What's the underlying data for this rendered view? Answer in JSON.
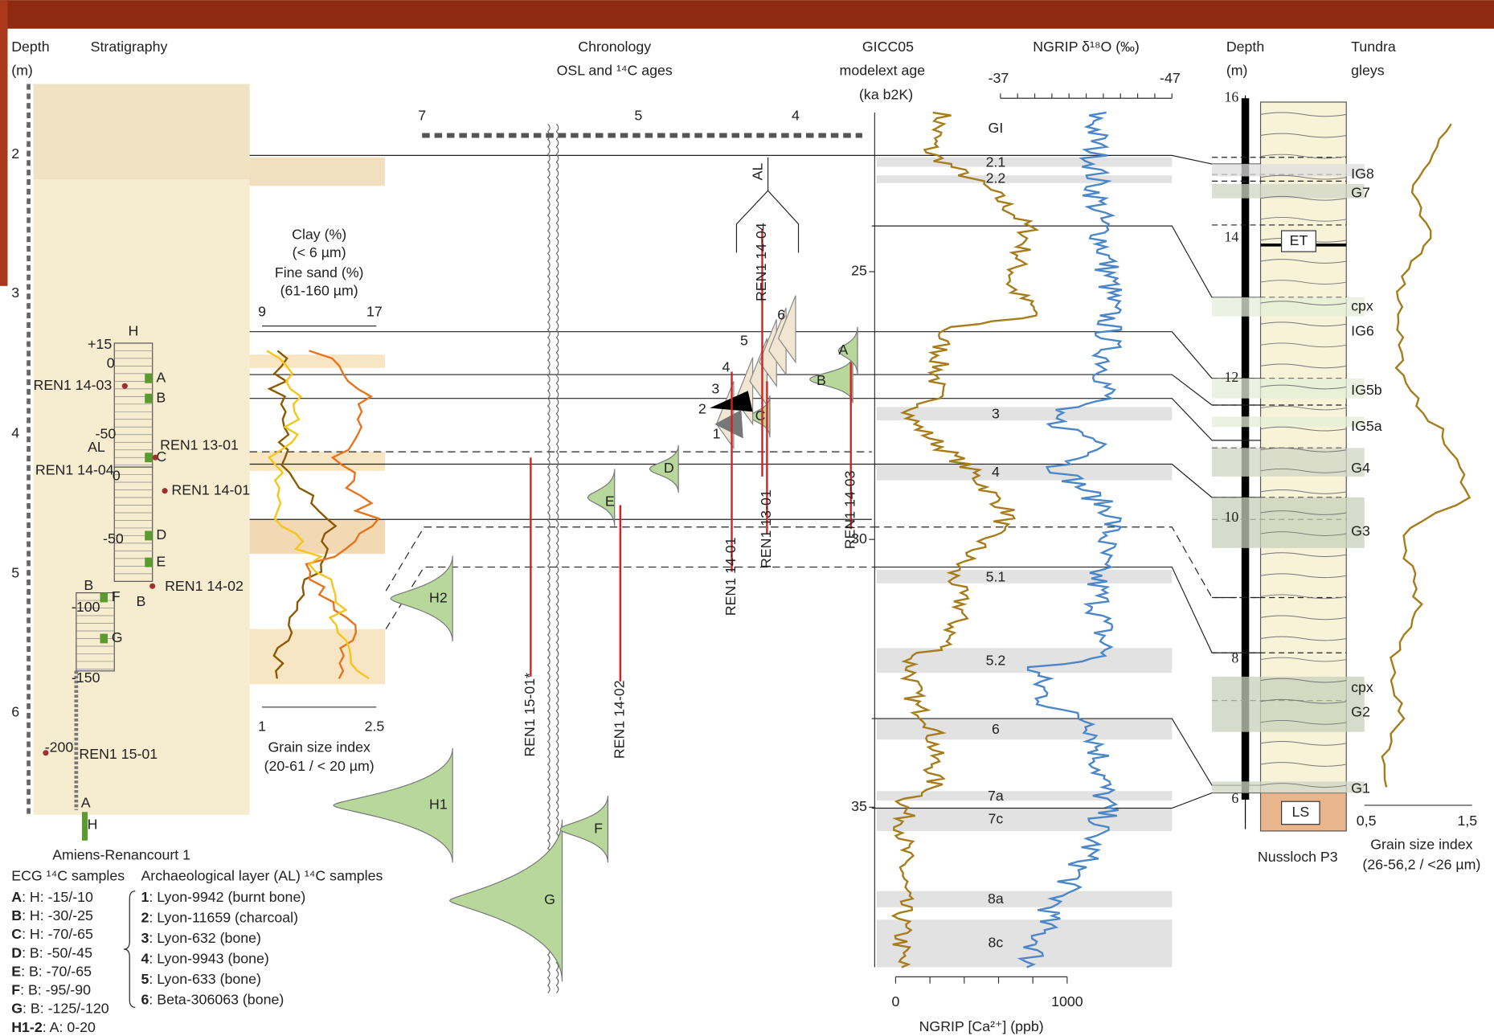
{
  "left_panel": {
    "depth_label": "Depth",
    "depth_unit": "(m)",
    "strat_label": "Stratigraphy",
    "depth_ticks": [
      "2",
      "3",
      "4",
      "5",
      "6"
    ],
    "profile_marks": [
      "+15",
      "0",
      "-50",
      "0",
      "-50",
      "-100",
      "-150",
      "-200"
    ],
    "column_labels": [
      "H",
      "B",
      "B",
      "A",
      "H"
    ],
    "samples": [
      "A",
      "B",
      "C",
      "D",
      "E",
      "F",
      "G"
    ],
    "al": "AL",
    "ren_labels": [
      "REN1 14-03",
      "REN1 13-01",
      "REN1 14-04",
      "REN1 14-01",
      "REN1 14-02",
      "REN1 15-01"
    ],
    "site": "Amiens-Renancourt 1"
  },
  "grain_panel": {
    "clay": "Clay (%)",
    "clay_sub": "(< 6 µm)",
    "sand": "Fine sand (%)",
    "sand_sub": "(61-160 µm)",
    "top_ticks": [
      "9",
      "17"
    ],
    "bottom_ticks": [
      "1",
      "2.5"
    ],
    "index": "Grain size index",
    "index_sub": "(20-61 / < 20 µm)"
  },
  "chronology": {
    "title": "Chronology",
    "subtitle": "OSL and ¹⁴C ages",
    "axis_ticks": [
      "7",
      "5",
      "4"
    ],
    "osl": [
      "H2",
      "H1",
      "G",
      "F",
      "E",
      "D",
      "C",
      "B",
      "A"
    ],
    "al": "AL",
    "c14": [
      "1",
      "2",
      "3",
      "4",
      "5",
      "6"
    ],
    "ages": [
      "REN1 15-01*",
      "REN1 14-02",
      "REN1 14-01",
      "REN1 13-01",
      "REN1 14-04",
      "REN1 14-03"
    ]
  },
  "gicc": {
    "title": "GICC05",
    "subtitle": "modelext age",
    "unit": "(ka b2K)",
    "ticks": [
      "25",
      "30",
      "35"
    ],
    "events": [
      "GI",
      "2.1",
      "2.2",
      "3",
      "4",
      "5.1",
      "5.2",
      "6",
      "7a",
      "7c",
      "8a",
      "8c"
    ],
    "ngrip_title": "NGRIP δ¹⁸O (‰)",
    "d18_ticks": [
      "-37",
      "-47"
    ],
    "ca_ticks": [
      "0",
      "1000"
    ],
    "ca_label": "NGRIP [Ca²⁺] (ppb)"
  },
  "nussloch": {
    "depth_label": "Depth",
    "depth_unit": "(m)",
    "tundra": "Tundra",
    "gleys": "gleys",
    "depth_ticks": [
      "16",
      "14",
      "12",
      "10",
      "8",
      "6"
    ],
    "horizons": [
      "IG8",
      "G7",
      "cpx",
      "IG6",
      "IG5b",
      "IG5a",
      "G4",
      "G3",
      "cpx",
      "G2",
      "G1"
    ],
    "boxes": [
      "ET",
      "LS"
    ],
    "site": "Nussloch P3",
    "x_ticks": [
      "0,5",
      "1,5"
    ],
    "index": "Grain size index",
    "index_sub": "(26-56,2 / <26 µm)"
  },
  "legend": {
    "ecg_title": "ECG ¹⁴C samples",
    "ecg": [
      {
        "key": "A",
        "text": ": H: -15/-10"
      },
      {
        "key": "B",
        "text": ": H: -30/-25"
      },
      {
        "key": "C",
        "text": ": H: -70/-65"
      },
      {
        "key": "D",
        "text": ": B: -50/-45"
      },
      {
        "key": "E",
        "text": ": B: -70/-65"
      },
      {
        "key": "F",
        "text": ": B: -95/-90"
      },
      {
        "key": "G",
        "text": ": B: -125/-120"
      },
      {
        "key": "H1-2",
        "text": ": A: 0-20"
      }
    ],
    "al_title": "Archaeological layer (AL) ¹⁴C samples",
    "al": [
      {
        "key": "1",
        "text": ": Lyon-9942 (burnt bone)"
      },
      {
        "key": "2",
        "text": ": Lyon-11659 (charcoal)"
      },
      {
        "key": "3",
        "text": ": Lyon-632 (bone)"
      },
      {
        "key": "4",
        "text": ": Lyon-9943 (bone)"
      },
      {
        "key": "5",
        "text": ": Lyon-633 (bone)"
      },
      {
        "key": "6",
        "text": ": Beta-306063 (bone)"
      }
    ]
  }
}
